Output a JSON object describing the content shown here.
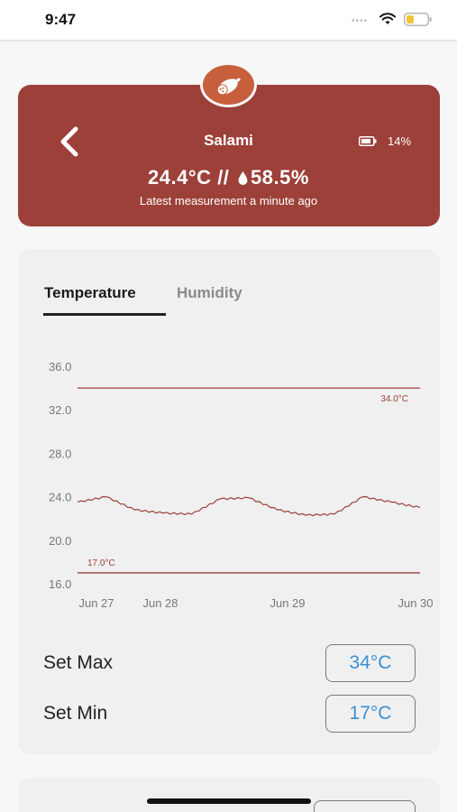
{
  "status_bar": {
    "time": "9:47",
    "signal_dots": "••••"
  },
  "header": {
    "title": "Salami",
    "battery_percent": "14%",
    "temperature_reading": "24.4°C",
    "separator": "//",
    "humidity_reading": "58.5%",
    "last_measurement": "Latest measurement a minute ago",
    "badge_icon": "salami-icon",
    "back_icon": "chevron-left-icon",
    "colors": {
      "card": "#9c4039",
      "badge": "#c75f3d"
    }
  },
  "tabs": [
    {
      "label": "Temperature",
      "selected": true
    },
    {
      "label": "Humidity",
      "selected": false
    }
  ],
  "chart_data": {
    "type": "line",
    "ylim": [
      16.0,
      36.0
    ],
    "y_ticks": [
      "36.0",
      "32.0",
      "28.0",
      "24.0",
      "20.0",
      "16.0"
    ],
    "x_ticks": [
      "Jun 27",
      "Jun 28",
      "Jun 29",
      "Jun 30"
    ],
    "grid": false,
    "series": [
      {
        "color": "#9c4039",
        "x": [
          "Jun 27 00:00",
          "Jun 27 06:00",
          "Jun 27 12:00",
          "Jun 27 18:00",
          "Jun 28 00:00",
          "Jun 28 06:00",
          "Jun 28 12:00",
          "Jun 28 18:00",
          "Jun 29 00:00",
          "Jun 29 06:00",
          "Jun 29 12:00",
          "Jun 29 18:00",
          "Jun 30 00:00"
        ],
        "values": [
          23.5,
          24.0,
          22.8,
          22.5,
          22.4,
          23.8,
          23.9,
          22.8,
          22.3,
          22.4,
          24.0,
          23.5,
          23.0
        ]
      }
    ],
    "thresholds": [
      {
        "label": "34.0°C",
        "value": 34.0
      },
      {
        "label": "17.0°C",
        "value": 17.0
      }
    ]
  },
  "settings": {
    "max_label": "Set Max",
    "max_value": "34°C",
    "min_label": "Set Min",
    "min_value": "17°C",
    "value_color": "#3d8fd1"
  }
}
